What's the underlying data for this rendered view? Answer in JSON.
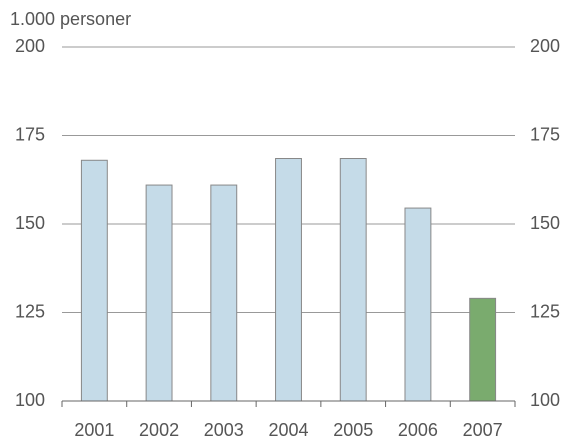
{
  "chart_data": {
    "type": "bar",
    "y_label": "1.000 personer",
    "categories": [
      "2001",
      "2002",
      "2003",
      "2004",
      "2005",
      "2006",
      "2007"
    ],
    "values": [
      168,
      161,
      161,
      168.5,
      168.5,
      154.5,
      129
    ],
    "colors": [
      "#c5dbe8",
      "#c5dbe8",
      "#c5dbe8",
      "#c5dbe8",
      "#c5dbe8",
      "#c5dbe8",
      "#7aab6e"
    ],
    "ylim": [
      100,
      200
    ],
    "yticks": [
      100,
      125,
      150,
      175,
      200
    ],
    "y2lim": [
      100,
      200
    ],
    "y2ticks": [
      100,
      125,
      150,
      175,
      200
    ],
    "grid": true
  }
}
